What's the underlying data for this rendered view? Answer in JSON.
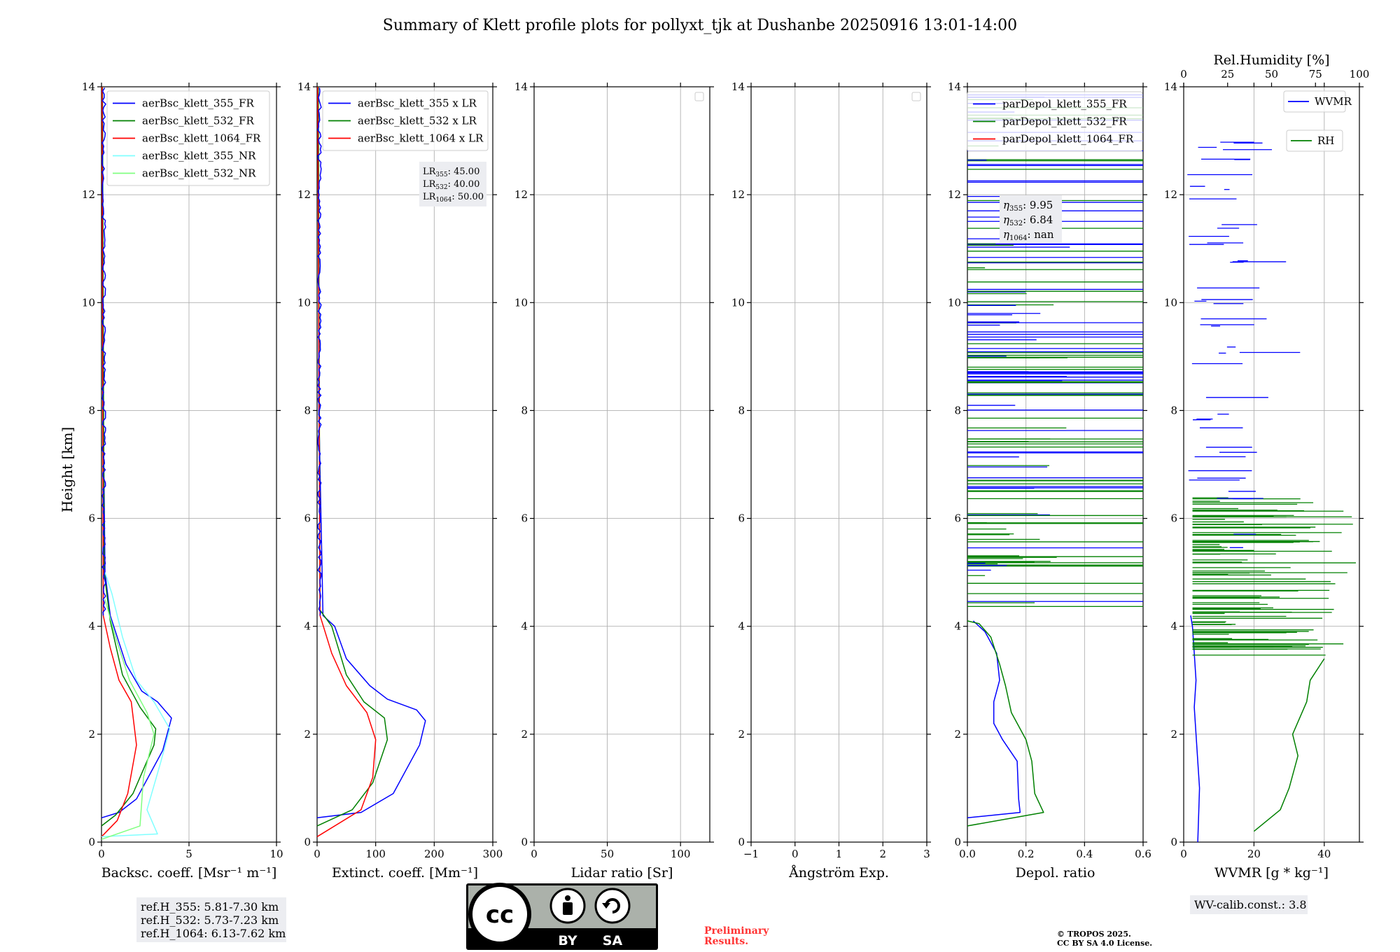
{
  "title": "Summary of Klett profile plots for pollyxt_tjk at Dushanbe 20250916 13:01-14:00",
  "colors": {
    "blue": "#0000ff",
    "green": "#008000",
    "red": "#ff0000",
    "cyan": "#80ffff",
    "lightgreen": "#80ff80",
    "preliminary": "#ff0000"
  },
  "height_axis": {
    "label": "Height [km]",
    "ylim": [
      0,
      14
    ],
    "ticks": [
      0,
      2,
      4,
      6,
      8,
      10,
      12,
      14
    ]
  },
  "panels": [
    {
      "id": "bsc",
      "xlabel": "Backsc. coeff. [Msr⁻¹ m⁻¹]",
      "xlim": [
        0,
        10
      ],
      "xticks": [
        0,
        5,
        10
      ],
      "legend": [
        "aerBsc_klett_355_FR",
        "aerBsc_klett_532_FR",
        "aerBsc_klett_1064_FR",
        "aerBsc_klett_355_NR",
        "aerBsc_klett_532_NR"
      ]
    },
    {
      "id": "ext",
      "xlabel": "Extinct. coeff. [Mm⁻¹]",
      "xlim": [
        0,
        300
      ],
      "xticks": [
        0,
        100,
        200,
        300
      ],
      "legend": [
        "aerBsc_klett_355 x LR",
        "aerBsc_klett_532 x LR",
        "aerBsc_klett_1064 x LR"
      ]
    },
    {
      "id": "lr",
      "xlabel": "Lidar ratio [Sr]",
      "xlim": [
        0,
        120
      ],
      "xticks": [
        0,
        50,
        100
      ],
      "legend": []
    },
    {
      "id": "ae",
      "xlabel": "Ångström Exp.",
      "xlim": [
        -1,
        3
      ],
      "xticks": [
        -1,
        0,
        1,
        2,
        3
      ],
      "legend": []
    },
    {
      "id": "depol",
      "xlabel": "Depol. ratio",
      "xlim": [
        0,
        0.6
      ],
      "xticks": [
        0.0,
        0.2,
        0.4,
        0.6
      ],
      "xtick_labels": [
        "0.0",
        "0.2",
        "0.4",
        "0.6"
      ],
      "legend": [
        "parDepol_klett_355_FR",
        "parDepol_klett_532_FR",
        "parDepol_klett_1064_FR"
      ]
    },
    {
      "id": "wv",
      "xlabel": "WVMR [g * kg⁻¹]",
      "xlim": [
        0,
        50
      ],
      "xticks": [
        0,
        20,
        40
      ],
      "top_label": "Rel.Humidity [%]",
      "top_xlim": [
        0,
        100
      ],
      "top_xticks": [
        0,
        25,
        50,
        75,
        100
      ],
      "legend": [
        "WVMR",
        "RH"
      ]
    }
  ],
  "annotations": {
    "lr_lines": [
      {
        "pre": "LR",
        "sub": "355",
        "value": ": 45.00"
      },
      {
        "pre": "LR",
        "sub": "532",
        "value": ": 40.00"
      },
      {
        "pre": "LR",
        "sub": "1064",
        "value": ": 50.00"
      }
    ],
    "eta_lines": [
      {
        "pre": "η",
        "sub": "355",
        "value": ": 9.95"
      },
      {
        "pre": "η",
        "sub": "532",
        "value": ": 6.84"
      },
      {
        "pre": "η",
        "sub": "1064",
        "value": ": nan"
      }
    ],
    "ref_heights": [
      "ref.H_355: 5.81-7.30 km",
      "ref.H_532: 5.73-7.23 km",
      "ref.H_1064: 6.13-7.62 km"
    ],
    "wv_calib": "WV-calib.const.: 3.8",
    "preliminary": [
      "Preliminary",
      "Results."
    ],
    "copyright": [
      "© TROPOS 2025.",
      "CC BY SA 4.0 License."
    ],
    "license_badge": {
      "cc": "cc",
      "by": "BY",
      "sa": "SA"
    }
  },
  "chart_data": {
    "type": "line",
    "y_variable": "Height [km]",
    "backscatter": [
      {
        "name": "aerBsc_klett_355_FR",
        "color": "blue",
        "x": [
          0,
          1.0,
          2.0,
          3.5,
          4.0,
          3.6,
          3.2,
          2.3,
          1.4,
          0.5,
          0.2,
          0.1,
          0.05
        ],
        "y": [
          0.45,
          0.55,
          0.8,
          1.7,
          2.3,
          2.45,
          2.6,
          2.8,
          3.3,
          4.2,
          5.0,
          8.0,
          14.0
        ]
      },
      {
        "name": "aerBsc_klett_532_FR",
        "color": "green",
        "x": [
          0,
          0.8,
          1.8,
          3.0,
          3.1,
          2.2,
          1.2,
          0.5,
          0.15,
          0.05
        ],
        "y": [
          0.3,
          0.5,
          0.9,
          1.8,
          2.1,
          2.5,
          3.1,
          4.1,
          5.0,
          14.0
        ]
      },
      {
        "name": "aerBsc_klett_1064_FR",
        "color": "red",
        "x": [
          0,
          0.9,
          1.5,
          2.0,
          1.7,
          1.0,
          0.5,
          0.1,
          0.03
        ],
        "y": [
          0.1,
          0.4,
          0.9,
          1.8,
          2.6,
          3.0,
          3.6,
          4.2,
          14.0
        ]
      },
      {
        "name": "aerBsc_klett_355_NR",
        "color": "cyan",
        "x": [
          0,
          3.2,
          2.6,
          3.4,
          3.9,
          3.0,
          2.0,
          1.2,
          0.6,
          0.2
        ],
        "y": [
          0.1,
          0.15,
          0.6,
          1.5,
          2.1,
          2.6,
          3.0,
          3.8,
          4.6,
          5.0
        ]
      },
      {
        "name": "aerBsc_klett_532_NR",
        "color": "lightgreen",
        "x": [
          0,
          2.2,
          2.4,
          3.0,
          2.6,
          1.6,
          0.8,
          0.2
        ],
        "y": [
          0.05,
          0.3,
          1.2,
          2.0,
          2.4,
          3.0,
          3.8,
          4.5
        ]
      }
    ],
    "extinction": [
      {
        "name": "aerBsc_klett_355 x LR",
        "color": "blue",
        "x": [
          0,
          75,
          130,
          175,
          185,
          170,
          120,
          90,
          50,
          30,
          10,
          3,
          2
        ],
        "y": [
          0.45,
          0.55,
          0.9,
          1.8,
          2.25,
          2.45,
          2.65,
          2.9,
          3.4,
          4.0,
          4.2,
          8.0,
          14.0
        ]
      },
      {
        "name": "aerBsc_klett_532 x LR",
        "color": "green",
        "x": [
          0,
          60,
          95,
          120,
          115,
          80,
          50,
          25,
          5,
          2
        ],
        "y": [
          0.3,
          0.6,
          1.1,
          1.9,
          2.3,
          2.6,
          3.1,
          4.0,
          4.3,
          14.0
        ]
      },
      {
        "name": "aerBsc_klett_1064 x LR",
        "color": "red",
        "x": [
          0,
          75,
          95,
          100,
          85,
          50,
          25,
          5,
          1
        ],
        "y": [
          0.1,
          0.6,
          1.2,
          1.9,
          2.4,
          2.9,
          3.5,
          4.2,
          14.0
        ]
      }
    ],
    "lidar_ratio": [],
    "angstrom_exponent": [],
    "depol_ratio": [
      {
        "name": "parDepol_klett_355_FR",
        "color": "blue",
        "x": [
          0,
          0.18,
          0.175,
          0.17,
          0.12,
          0.09,
          0.09,
          0.11,
          0.1,
          0.06,
          0.02
        ],
        "y": [
          0.45,
          0.55,
          0.8,
          1.5,
          1.9,
          2.2,
          2.6,
          3.0,
          3.5,
          3.9,
          4.1
        ]
      },
      {
        "name": "parDepol_klett_532_FR",
        "color": "green",
        "x": [
          0,
          0.26,
          0.23,
          0.22,
          0.2,
          0.15,
          0.13,
          0.11,
          0.08,
          0.04,
          0.0
        ],
        "y": [
          0.3,
          0.55,
          0.9,
          1.5,
          1.9,
          2.4,
          2.9,
          3.3,
          3.8,
          4.05,
          4.1
        ]
      }
    ],
    "water_vapor": [
      {
        "name": "WVMR",
        "axis": "WVMR [g*kg-1]",
        "color": "blue",
        "x": [
          4,
          4.5,
          3.5,
          3.0,
          3.5,
          3.0,
          2.5,
          2.0
        ],
        "y": [
          0,
          1,
          2,
          2.5,
          3.0,
          3.5,
          4.0,
          4.2
        ]
      },
      {
        "name": "RH",
        "axis": "Rel.Humidity [%]",
        "color": "green",
        "x": [
          40,
          55,
          60,
          65,
          62,
          70,
          72,
          80
        ],
        "y": [
          0.2,
          0.6,
          1.0,
          1.6,
          2.0,
          2.6,
          3.0,
          3.4
        ]
      }
    ]
  }
}
